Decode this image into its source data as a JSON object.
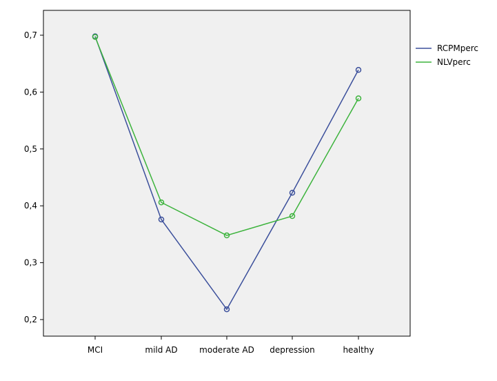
{
  "chart_data": {
    "type": "line",
    "title": "",
    "xlabel": "",
    "ylabel": "",
    "categories": [
      "MCI",
      "mild AD",
      "moderate AD",
      "depression",
      "healthy"
    ],
    "series": [
      {
        "name": "RCPMperc",
        "color": "#3b4f9b",
        "values": [
          0.698,
          0.376,
          0.218,
          0.423,
          0.639
        ]
      },
      {
        "name": "NLVperc",
        "color": "#3cb33c",
        "values": [
          0.697,
          0.406,
          0.348,
          0.382,
          0.589
        ]
      }
    ],
    "ylim": [
      0.15,
      0.73
    ],
    "yticks": [
      0.2,
      0.3,
      0.4,
      0.5,
      0.6,
      0.7
    ],
    "ytick_labels": [
      "0,2",
      "0,3",
      "0,4",
      "0,5",
      "0,6",
      "0,7"
    ],
    "grid": false,
    "legend": "right",
    "plot_background": "#f0f0f0",
    "marker": "circle"
  }
}
